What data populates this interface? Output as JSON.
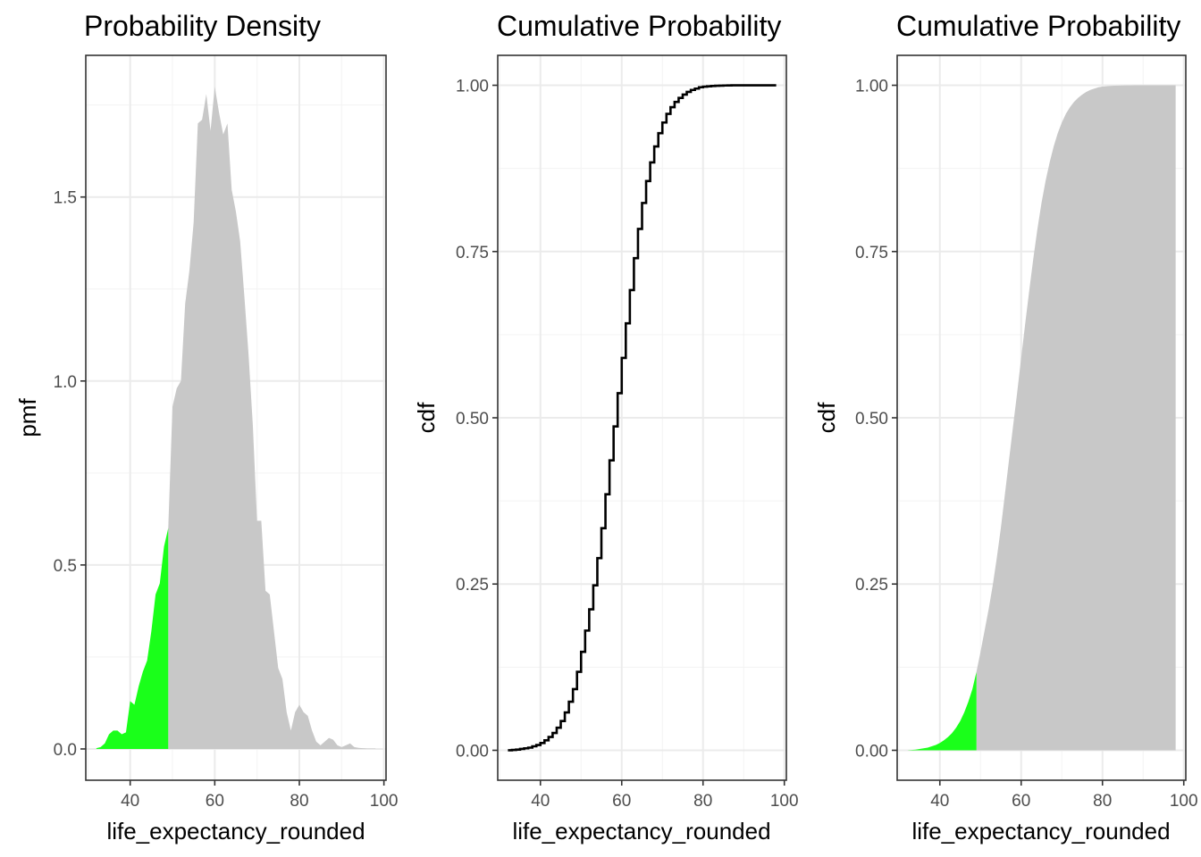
{
  "chart_data": [
    {
      "type": "area",
      "title": "Probability Density",
      "xlabel": "life_expectancy_rounded",
      "ylabel": "pmf",
      "xlim": [
        29.5,
        100.5
      ],
      "ylim": [
        -0.085,
        1.885
      ],
      "xticks": [
        40,
        60,
        80,
        100
      ],
      "xtick_labels": [
        "40",
        "60",
        "80",
        "100"
      ],
      "yticks": [
        0.0,
        0.5,
        1.0,
        1.5
      ],
      "ytick_labels": [
        "0.0",
        "0.5",
        "1.0",
        "1.5"
      ],
      "grid": true,
      "highlight_threshold": 49,
      "colors": {
        "highlight": "#1aff1a",
        "fill": "#c8c8c8",
        "panel_border": "#333333",
        "grid_major": "#ebebeb",
        "grid_minor": "#f3f3f3"
      },
      "series": [
        {
          "x": [
            32,
            33,
            34,
            35,
            36,
            37,
            38,
            39,
            40,
            41,
            42,
            43,
            44,
            45,
            46,
            47,
            48,
            49,
            50,
            51,
            52,
            53,
            54,
            55,
            56,
            57,
            58,
            59,
            60,
            61,
            62,
            63,
            64,
            65,
            66,
            67,
            68,
            69,
            70,
            71,
            72,
            73,
            74,
            75,
            76,
            77,
            78,
            79,
            80,
            81,
            82,
            83,
            84,
            85,
            86,
            87,
            88,
            89,
            90,
            91,
            92,
            93,
            94,
            95,
            96,
            97,
            98
          ],
          "values": [
            0.002,
            0.005,
            0.015,
            0.04,
            0.05,
            0.05,
            0.04,
            0.045,
            0.13,
            0.12,
            0.17,
            0.21,
            0.24,
            0.32,
            0.42,
            0.45,
            0.55,
            0.6,
            0.93,
            0.98,
            1.0,
            1.21,
            1.3,
            1.43,
            1.7,
            1.71,
            1.78,
            1.68,
            1.8,
            1.73,
            1.67,
            1.7,
            1.52,
            1.46,
            1.38,
            1.23,
            1.07,
            0.88,
            0.62,
            0.62,
            0.43,
            0.42,
            0.32,
            0.22,
            0.19,
            0.1,
            0.05,
            0.1,
            0.12,
            0.1,
            0.09,
            0.05,
            0.02,
            0.01,
            0.02,
            0.03,
            0.025,
            0.01,
            0.005,
            0.01,
            0.015,
            0.005,
            0.003,
            0.002,
            0.001,
            0.001,
            0.001
          ]
        }
      ]
    },
    {
      "type": "line",
      "title": "Cumulative Probability",
      "xlabel": "life_expectancy_rounded",
      "ylabel": "cdf",
      "xlim": [
        29.5,
        100.5
      ],
      "ylim": [
        -0.045,
        1.045
      ],
      "xticks": [
        40,
        60,
        80,
        100
      ],
      "xtick_labels": [
        "40",
        "60",
        "80",
        "100"
      ],
      "yticks": [
        0.0,
        0.25,
        0.5,
        0.75,
        1.0
      ],
      "ytick_labels": [
        "0.00",
        "0.25",
        "0.50",
        "0.75",
        "1.00"
      ],
      "grid": true,
      "step": true,
      "colors": {
        "line": "#000000",
        "panel_border": "#333333",
        "grid_major": "#ebebeb",
        "grid_minor": "#f3f3f3"
      },
      "series": [
        {
          "x": [
            32,
            33,
            34,
            35,
            36,
            37,
            38,
            39,
            40,
            41,
            42,
            43,
            44,
            45,
            46,
            47,
            48,
            49,
            50,
            51,
            52,
            53,
            54,
            55,
            56,
            57,
            58,
            59,
            60,
            61,
            62,
            63,
            64,
            65,
            66,
            67,
            68,
            69,
            70,
            71,
            72,
            73,
            74,
            75,
            76,
            77,
            78,
            79,
            80,
            81,
            82,
            83,
            84,
            85,
            86,
            87,
            88,
            89,
            90,
            91,
            92,
            93,
            94,
            95,
            96,
            97,
            98
          ],
          "values": [
            0.0,
            0.0005,
            0.001,
            0.002,
            0.003,
            0.004,
            0.006,
            0.008,
            0.011,
            0.015,
            0.02,
            0.026,
            0.034,
            0.044,
            0.057,
            0.073,
            0.092,
            0.118,
            0.148,
            0.18,
            0.212,
            0.248,
            0.289,
            0.334,
            0.385,
            0.436,
            0.487,
            0.537,
            0.59,
            0.642,
            0.692,
            0.74,
            0.784,
            0.823,
            0.856,
            0.884,
            0.908,
            0.928,
            0.944,
            0.957,
            0.967,
            0.975,
            0.981,
            0.986,
            0.99,
            0.993,
            0.995,
            0.997,
            0.998,
            0.9985,
            0.999,
            0.9993,
            0.9995,
            0.9997,
            0.9998,
            0.9999,
            1.0,
            1.0,
            1.0,
            1.0,
            1.0,
            1.0,
            1.0,
            1.0,
            1.0,
            1.0,
            1.0
          ]
        }
      ]
    },
    {
      "type": "area",
      "title": "Cumulative Probability",
      "xlabel": "life_expectancy_rounded",
      "ylabel": "cdf",
      "xlim": [
        29.5,
        100.5
      ],
      "ylim": [
        -0.045,
        1.045
      ],
      "xticks": [
        40,
        60,
        80,
        100
      ],
      "xtick_labels": [
        "40",
        "60",
        "80",
        "100"
      ],
      "yticks": [
        0.0,
        0.25,
        0.5,
        0.75,
        1.0
      ],
      "ytick_labels": [
        "0.00",
        "0.25",
        "0.50",
        "0.75",
        "1.00"
      ],
      "grid": true,
      "highlight_threshold": 49,
      "colors": {
        "highlight": "#1aff1a",
        "fill": "#c8c8c8",
        "panel_border": "#333333",
        "grid_major": "#ebebeb",
        "grid_minor": "#f3f3f3"
      },
      "series": [
        {
          "x": [
            32,
            33,
            34,
            35,
            36,
            37,
            38,
            39,
            40,
            41,
            42,
            43,
            44,
            45,
            46,
            47,
            48,
            49,
            50,
            51,
            52,
            53,
            54,
            55,
            56,
            57,
            58,
            59,
            60,
            61,
            62,
            63,
            64,
            65,
            66,
            67,
            68,
            69,
            70,
            71,
            72,
            73,
            74,
            75,
            76,
            77,
            78,
            79,
            80,
            81,
            82,
            83,
            84,
            85,
            86,
            87,
            88,
            89,
            90,
            91,
            92,
            93,
            94,
            95,
            96,
            97,
            98
          ],
          "values": [
            0.0,
            0.0005,
            0.001,
            0.002,
            0.003,
            0.004,
            0.006,
            0.008,
            0.011,
            0.015,
            0.02,
            0.026,
            0.034,
            0.044,
            0.057,
            0.073,
            0.092,
            0.118,
            0.148,
            0.18,
            0.212,
            0.248,
            0.289,
            0.334,
            0.385,
            0.436,
            0.487,
            0.537,
            0.59,
            0.642,
            0.692,
            0.74,
            0.784,
            0.823,
            0.856,
            0.884,
            0.908,
            0.928,
            0.944,
            0.957,
            0.967,
            0.975,
            0.981,
            0.986,
            0.99,
            0.993,
            0.995,
            0.997,
            0.998,
            0.9985,
            0.999,
            0.9993,
            0.9995,
            0.9997,
            0.9998,
            0.9999,
            1.0,
            1.0,
            1.0,
            1.0,
            1.0,
            1.0,
            1.0,
            1.0,
            1.0,
            1.0,
            1.0
          ]
        }
      ]
    }
  ]
}
